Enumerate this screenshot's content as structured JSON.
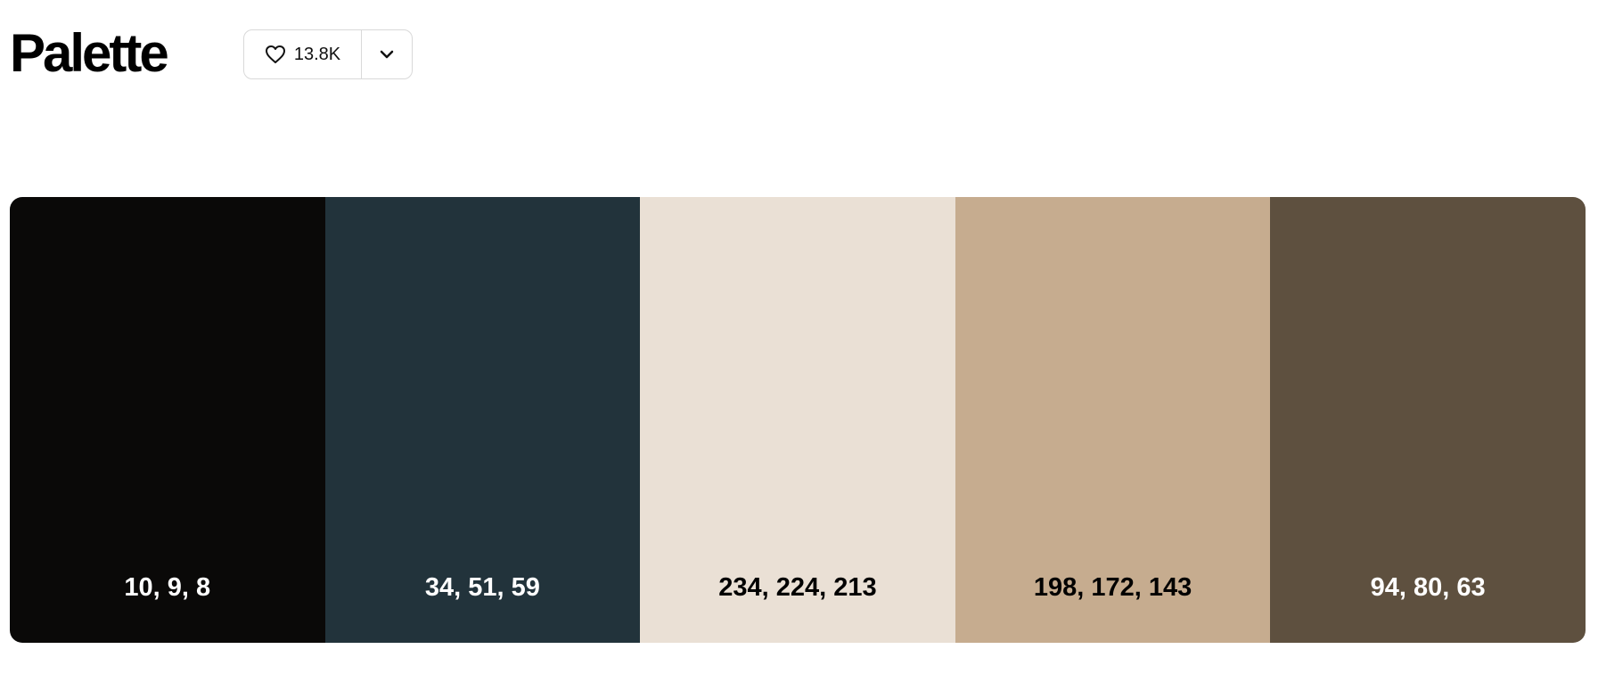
{
  "page": {
    "title": "Palette"
  },
  "actions": {
    "like_count": "13.8K",
    "like_icon": "heart-icon",
    "more_icon": "chevron-down-icon"
  },
  "palette": {
    "swatches": [
      {
        "label": "10, 9, 8",
        "color": "#0a0908",
        "text_color": "#ffffff"
      },
      {
        "label": "34, 51, 59",
        "color": "#22333b",
        "text_color": "#ffffff"
      },
      {
        "label": "234, 224, 213",
        "color": "#eae0d5",
        "text_color": "#000000"
      },
      {
        "label": "198, 172, 143",
        "color": "#c6ac8f",
        "text_color": "#000000"
      },
      {
        "label": "94, 80, 63",
        "color": "#5e503f",
        "text_color": "#ffffff"
      }
    ]
  }
}
